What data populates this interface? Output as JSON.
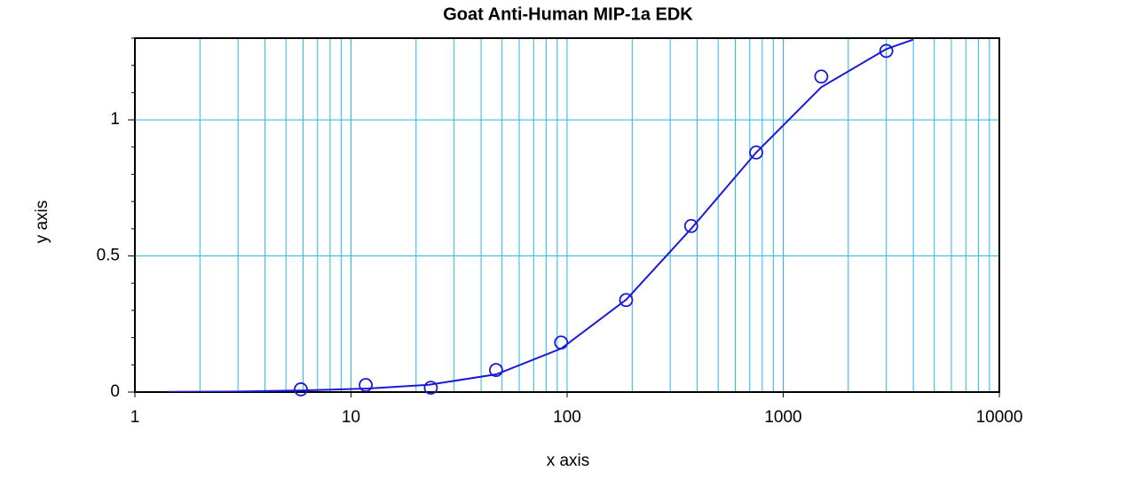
{
  "chart_data": {
    "type": "scatter",
    "title": "Goat Anti-Human MIP-1a EDK",
    "x_label": "x axis",
    "y_label": "y axis",
    "log_x": true,
    "grid": true,
    "grid_color": "#29b6e6",
    "xlim": [
      1,
      10000
    ],
    "xticks": [
      1,
      10,
      100,
      1000,
      10000
    ],
    "ylim": [
      0,
      1.3
    ],
    "yticks": [
      0,
      0.5,
      1
    ],
    "series": [
      {
        "marker": "circle",
        "color": "#1a1ad6",
        "x": [
          5.86,
          11.7,
          23.4,
          46.9,
          93.8,
          187.5,
          375,
          750,
          1500,
          3000
        ],
        "values": [
          0.01,
          0.026,
          0.016,
          0.081,
          0.182,
          0.338,
          0.61,
          0.88,
          1.159,
          1.253
        ]
      },
      {
        "marker": "line",
        "color": "#1a1ad6",
        "x": [
          1.43,
          3,
          6,
          12,
          23,
          47,
          94,
          188,
          375,
          750,
          1500,
          3000,
          4000
        ],
        "values": [
          0.001,
          0.002,
          0.006,
          0.013,
          0.027,
          0.065,
          0.16,
          0.34,
          0.6,
          0.88,
          1.12,
          1.26,
          1.295
        ]
      }
    ]
  }
}
